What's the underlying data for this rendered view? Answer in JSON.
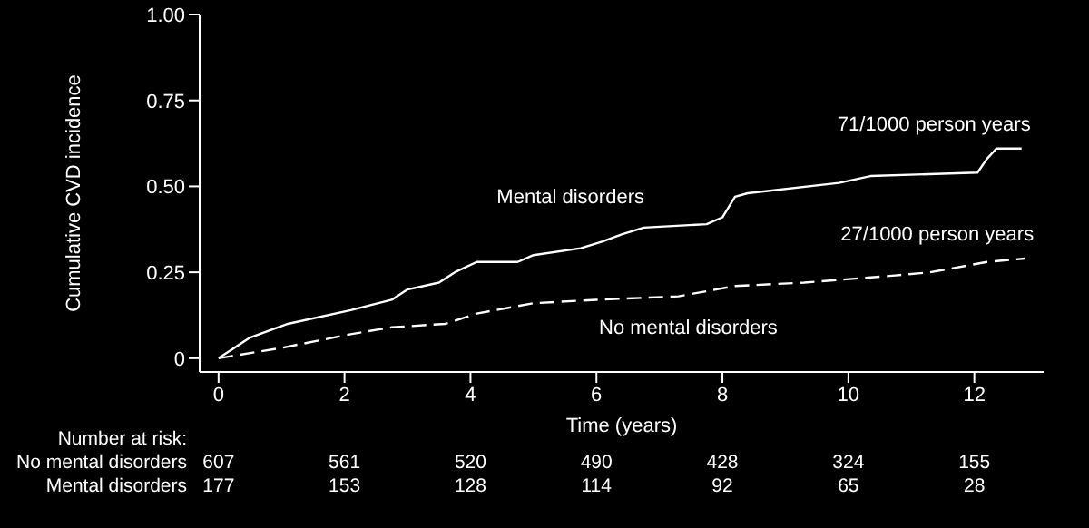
{
  "chart_data": {
    "type": "line",
    "xlabel": "Time (years)",
    "ylabel": "Cumulative CVD incidence",
    "xlim": [
      -0.3,
      13.1
    ],
    "xticks": [
      0,
      2,
      4,
      6,
      8,
      10,
      12
    ],
    "ylim": [
      -0.04,
      1.0
    ],
    "yticks": [
      {
        "value": 0,
        "label": "0"
      },
      {
        "value": 0.25,
        "label": "0.25"
      },
      {
        "value": 0.5,
        "label": "0.50"
      },
      {
        "value": 0.75,
        "label": "0.75"
      },
      {
        "value": 1,
        "label": "1.00"
      }
    ],
    "grid": false,
    "legend": false,
    "marker": "none",
    "series": [
      {
        "name": "Mental disorders",
        "color": "#ffffff",
        "line_style": "solid",
        "x": [
          0,
          0.5,
          1.1,
          2.1,
          2.75,
          3.0,
          3.5,
          3.75,
          4.1,
          4.75,
          5.0,
          5.75,
          6.1,
          6.4,
          6.75,
          7.75,
          8.0,
          8.2,
          8.4,
          9.85,
          10.35,
          12.05,
          12.2,
          12.35,
          12.75
        ],
        "values": [
          0,
          0.06,
          0.1,
          0.14,
          0.17,
          0.2,
          0.22,
          0.25,
          0.28,
          0.28,
          0.3,
          0.32,
          0.34,
          0.36,
          0.38,
          0.39,
          0.41,
          0.47,
          0.48,
          0.51,
          0.53,
          0.54,
          0.58,
          0.61,
          0.61
        ]
      },
      {
        "name": "No mental disorders",
        "color": "#ffffff",
        "line_style": "dashed",
        "x": [
          0,
          1,
          2.1,
          2.75,
          3.6,
          4.1,
          5,
          6,
          7.3,
          8.2,
          9.3,
          10.7,
          11.3,
          12.2,
          12.8
        ],
        "values": [
          0,
          0.03,
          0.07,
          0.09,
          0.1,
          0.13,
          0.16,
          0.17,
          0.18,
          0.21,
          0.22,
          0.24,
          0.25,
          0.28,
          0.29
        ]
      }
    ],
    "annotations": [
      {
        "text": "71/1000 person years",
        "x": 12.75,
        "y": 0.61
      },
      {
        "text": "27/1000 person years",
        "x": 12.8,
        "y": 0.29
      },
      "Number at risk:",
      "No mental disorders",
      "607",
      "561",
      "520",
      "490",
      "428",
      "324",
      "155",
      "Mental disorders",
      "177",
      "153",
      "128",
      "114",
      "92",
      "65",
      "28"
    ]
  }
}
